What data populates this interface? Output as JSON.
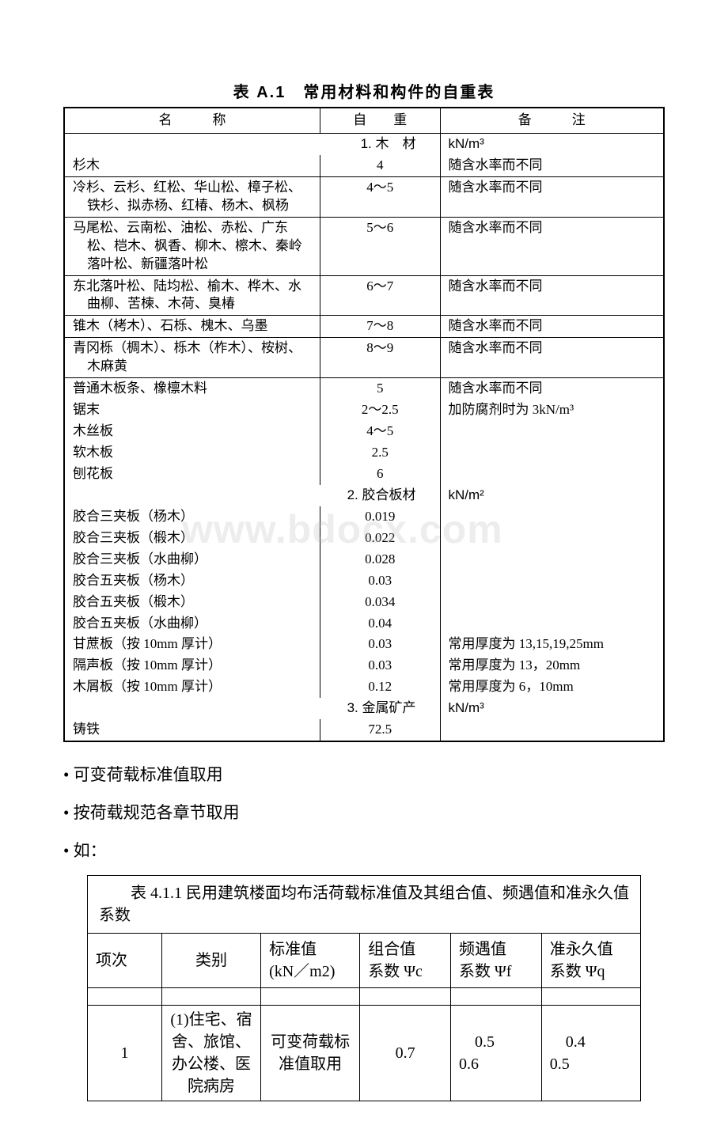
{
  "tableA1": {
    "title": "表 A.1　常用材料和构件的自重表",
    "headers": {
      "name": "名　　　称",
      "weight": "自　　重",
      "note": "备　　　注"
    },
    "sections": [
      {
        "label": "1. 木　材",
        "unit": "kN/m³",
        "rows": [
          {
            "name": "杉木",
            "weight": "4",
            "note": "随含水率而不同"
          },
          {
            "name": "冷杉、云杉、红松、华山松、樟子松、铁杉、拟赤杨、红椿、杨木、枫杨",
            "weight": "4～5",
            "note": "随含水率而不同"
          },
          {
            "name": "马尾松、云南松、油松、赤松、广东松、桤木、枫香、柳木、檫木、秦岭落叶松、新疆落叶松",
            "weight": "5～6",
            "note": "随含水率而不同"
          },
          {
            "name": "东北落叶松、陆均松、榆木、桦木、水曲柳、苦楝、木荷、臭椿",
            "weight": "6～7",
            "note": "随含水率而不同"
          },
          {
            "name": "锥木（栲木）、石栎、槐木、乌墨",
            "weight": "7～8",
            "note": "随含水率而不同"
          },
          {
            "name": "青冈栎（椆木）、栎木（柞木）、桉树、木麻黄",
            "weight": "8～9",
            "note": "随含水率而不同"
          },
          {
            "name": "普通木板条、橡檩木料",
            "weight": "5",
            "note": "随含水率而不同"
          },
          {
            "name": "锯末",
            "weight": "2～2.5",
            "note": "加防腐剂时为 3kN/m³"
          },
          {
            "name": "木丝板",
            "weight": "4～5",
            "note": ""
          },
          {
            "name": "软木板",
            "weight": "2.5",
            "note": ""
          },
          {
            "name": "刨花板",
            "weight": "6",
            "note": ""
          }
        ]
      },
      {
        "label": "2. 胶合板材",
        "unit": "kN/m²",
        "rows": [
          {
            "name": "胶合三夹板（杨木）",
            "weight": "0.019",
            "note": ""
          },
          {
            "name": "胶合三夹板（椴木）",
            "weight": "0.022",
            "note": ""
          },
          {
            "name": "胶合三夹板（水曲柳）",
            "weight": "0.028",
            "note": ""
          },
          {
            "name": "胶合五夹板（杨木）",
            "weight": "0.03",
            "note": ""
          },
          {
            "name": "胶合五夹板（椴木）",
            "weight": "0.034",
            "note": ""
          },
          {
            "name": "胶合五夹板（水曲柳）",
            "weight": "0.04",
            "note": ""
          },
          {
            "name": "甘蔗板（按 10mm 厚计）",
            "weight": "0.03",
            "note": "常用厚度为 13,15,19,25mm"
          },
          {
            "name": "隔声板（按 10mm 厚计）",
            "weight": "0.03",
            "note": "常用厚度为 13，20mm"
          },
          {
            "name": "木屑板（按 10mm 厚计）",
            "weight": "0.12",
            "note": "常用厚度为 6，10mm"
          }
        ]
      },
      {
        "label": "3. 金属矿产",
        "unit": "kN/m³",
        "rows": [
          {
            "name": "铸铁",
            "weight": "72.5",
            "note": ""
          }
        ]
      }
    ]
  },
  "bullets": [
    "• 可变荷载标准值取用",
    "• 按荷载规范各章节取用",
    "• 如："
  ],
  "table411": {
    "caption": "表 4.1.1 民用建筑楼面均布活荷载标准值及其组合值、频遇值和准永久值系数",
    "headers": {
      "idx": "项次",
      "cat": "类别",
      "std": "标准值\n(kN／m2)",
      "comb": "组合值\n系数 Ψc",
      "freq": "频遇值\n系数 Ψf",
      "perm": "准永久值\n系数 Ψq"
    },
    "rows": [
      {
        "idx": "1",
        "cat": "(1)住宅、宿舍、旅馆、办公楼、医院病房",
        "std": "可变荷载标准值取用",
        "comb": "0.7",
        "freq": "0.5\n0.6",
        "perm": "0.4\n0.5"
      }
    ]
  },
  "watermark": "www.bdocx.com"
}
